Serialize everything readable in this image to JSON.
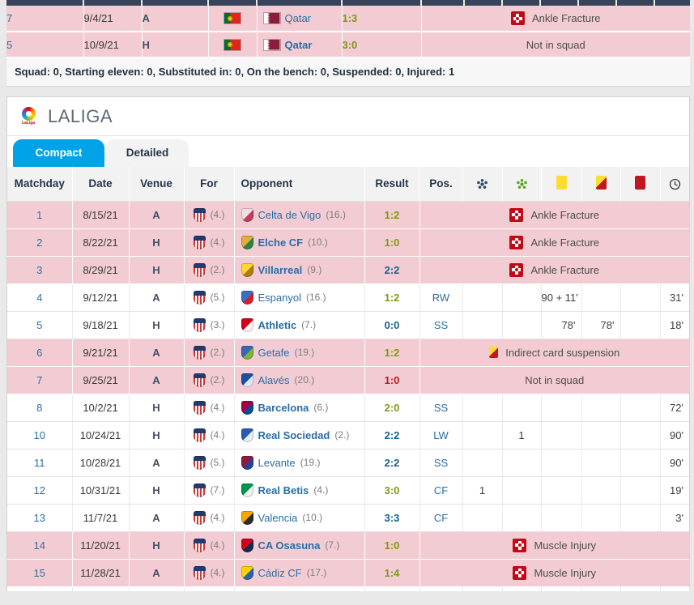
{
  "colors": {
    "accent_tab": "#00a3e8",
    "header_navy": "#36435a",
    "row_pink": "#f3ccd3",
    "link_blue": "#2a6da4",
    "result_win": "#7d9a10",
    "result_draw": "#13618f",
    "result_loss": "#c01722",
    "goals_ball": "#2c4a6b",
    "assists_ball": "#5aa51e",
    "yellow_card": "#fbdc33",
    "red_card": "#c01722",
    "injury_red": "#c00a18"
  },
  "international_table": {
    "rows": [
      {
        "matchday": "7",
        "date": "9/4/21",
        "venue": "A",
        "for_flag": "portugal-flag",
        "opponent": "Qatar",
        "opponent_flag": "qatar-flag",
        "opponent_bold": false,
        "result": "1:3",
        "result_kind": "win",
        "remark": "Ankle Fracture",
        "remark_icon": "injury-cross-icon"
      },
      {
        "matchday": "5",
        "date": "10/9/21",
        "venue": "H",
        "for_flag": "portugal-flag",
        "opponent": "Qatar",
        "opponent_flag": "qatar-flag",
        "opponent_bold": true,
        "result": "3:0",
        "result_kind": "win",
        "remark": "Not in squad",
        "remark_icon": null
      }
    ],
    "summary": "Squad: 0, Starting eleven: 0, Substituted in: 0, On the bench: 0, Suspended: 0, Injured: 1"
  },
  "laliga_section": {
    "title": "LALIGA",
    "logo": "laliga-logo",
    "logo_text": "LaLiga",
    "tabs": [
      {
        "label": "Compact",
        "active": true
      },
      {
        "label": "Detailed",
        "active": false
      }
    ],
    "table": {
      "headers": [
        "Matchday",
        "Date",
        "Venue",
        "For",
        "Opponent",
        "Result",
        "Pos."
      ],
      "icon_headers": [
        "goals-ball-icon",
        "assists-ball-icon",
        "yellow-card-icon",
        "yellow-red-card-icon",
        "red-card-icon",
        "minutes-clock-icon"
      ],
      "for_team": "Atlético Madrid",
      "rows": [
        {
          "matchday": "1",
          "date": "8/15/21",
          "venue": "A",
          "for_rank": "(4.)",
          "opponent": "Celta de Vigo",
          "opponent_rank": "(16.)",
          "opponent_bold": false,
          "badge_colors": [
            "#f2dce6",
            "#c13f5e"
          ],
          "result": "1:2",
          "result_kind": "win",
          "remark": "Ankle Fracture",
          "remark_icon": "injury-cross-icon",
          "pink": true
        },
        {
          "matchday": "2",
          "date": "8/22/21",
          "venue": "H",
          "for_rank": "(4.)",
          "opponent": "Elche CF",
          "opponent_rank": "(10.)",
          "opponent_bold": true,
          "badge_colors": [
            "#dfae3e",
            "#2e8540"
          ],
          "result": "1:0",
          "result_kind": "win",
          "remark": "Ankle Fracture",
          "remark_icon": "injury-cross-icon",
          "pink": true
        },
        {
          "matchday": "3",
          "date": "8/29/21",
          "venue": "H",
          "for_rank": "(2.)",
          "opponent": "Villarreal",
          "opponent_rank": "(9.)",
          "opponent_bold": true,
          "badge_colors": [
            "#ffd633",
            "#a97d12"
          ],
          "result": "2:2",
          "result_kind": "draw",
          "remark": "Ankle Fracture",
          "remark_icon": "injury-cross-icon",
          "pink": true
        },
        {
          "matchday": "4",
          "date": "9/12/21",
          "venue": "A",
          "for_rank": "(5.)",
          "opponent": "Espanyol",
          "opponent_rank": "(16.)",
          "opponent_bold": false,
          "badge_colors": [
            "#3a6fc4",
            "#d42029"
          ],
          "result": "1:2",
          "result_kind": "win",
          "pos": "RW",
          "goals": "",
          "assists": "",
          "yellow": "90 + 11'",
          "yellowred": "",
          "red": "",
          "minutes": "31'",
          "pink": false
        },
        {
          "matchday": "5",
          "date": "9/18/21",
          "venue": "H",
          "for_rank": "(3.)",
          "opponent": "Athletic",
          "opponent_rank": "(7.)",
          "opponent_bold": true,
          "badge_colors": [
            "#d0021b",
            "#f5f5f5"
          ],
          "result": "0:0",
          "result_kind": "draw",
          "pos": "SS",
          "goals": "",
          "assists": "",
          "yellow": "78'",
          "yellowred": "78'",
          "red": "",
          "minutes": "18'",
          "pink": false
        },
        {
          "matchday": "6",
          "date": "9/21/21",
          "venue": "A",
          "for_rank": "(2.)",
          "opponent": "Getafe",
          "opponent_rank": "(19.)",
          "opponent_bold": false,
          "badge_colors": [
            "#3a67b1",
            "#7fb23d"
          ],
          "result": "1:2",
          "result_kind": "win",
          "remark": "Indirect card suspension",
          "remark_icon": "yellow-red-card-icon",
          "pink": true
        },
        {
          "matchday": "7",
          "date": "9/25/21",
          "venue": "A",
          "for_rank": "(2.)",
          "opponent": "Alavés",
          "opponent_rank": "(20.)",
          "opponent_bold": false,
          "badge_colors": [
            "#1b4fa0",
            "#dfe9f5"
          ],
          "result": "1:0",
          "result_kind": "loss",
          "remark": "Not in squad",
          "remark_icon": null,
          "pink": true
        },
        {
          "matchday": "8",
          "date": "10/2/21",
          "venue": "H",
          "for_rank": "(4.)",
          "opponent": "Barcelona",
          "opponent_rank": "(6.)",
          "opponent_bold": true,
          "badge_colors": [
            "#a50044",
            "#004d98"
          ],
          "result": "2:0",
          "result_kind": "win",
          "pos": "SS",
          "goals": "",
          "assists": "",
          "yellow": "",
          "yellowred": "",
          "red": "",
          "minutes": "72'",
          "pink": false
        },
        {
          "matchday": "10",
          "date": "10/24/21",
          "venue": "H",
          "for_rank": "(4.)",
          "opponent": "Real Sociedad",
          "opponent_rank": "(2.)",
          "opponent_bold": true,
          "badge_colors": [
            "#2a5cad",
            "#e8eef7"
          ],
          "result": "2:2",
          "result_kind": "draw",
          "pos": "LW",
          "goals": "",
          "assists": "1",
          "yellow": "",
          "yellowred": "",
          "red": "",
          "minutes": "90'",
          "pink": false
        },
        {
          "matchday": "11",
          "date": "10/28/21",
          "venue": "A",
          "for_rank": "(5.)",
          "opponent": "Levante",
          "opponent_rank": "(19.)",
          "opponent_bold": false,
          "badge_colors": [
            "#8c1b3f",
            "#24439a"
          ],
          "result": "2:2",
          "result_kind": "draw",
          "pos": "SS",
          "goals": "",
          "assists": "",
          "yellow": "",
          "yellowred": "",
          "red": "",
          "minutes": "90'",
          "pink": false
        },
        {
          "matchday": "12",
          "date": "10/31/21",
          "venue": "H",
          "for_rank": "(7.)",
          "opponent": "Real Betis",
          "opponent_rank": "(4.)",
          "opponent_bold": true,
          "badge_colors": [
            "#00954c",
            "#f0f4ef"
          ],
          "result": "3:0",
          "result_kind": "win",
          "pos": "CF",
          "goals": "1",
          "assists": "",
          "yellow": "",
          "yellowred": "",
          "red": "",
          "minutes": "19'",
          "pink": false
        },
        {
          "matchday": "13",
          "date": "11/7/21",
          "venue": "A",
          "for_rank": "(4.)",
          "opponent": "Valencia",
          "opponent_rank": "(10.)",
          "opponent_bold": false,
          "badge_colors": [
            "#f7a800",
            "#2b2b2b"
          ],
          "result": "3:3",
          "result_kind": "draw",
          "pos": "CF",
          "goals": "",
          "assists": "",
          "yellow": "",
          "yellowred": "",
          "red": "",
          "minutes": "3'",
          "pink": false
        },
        {
          "matchday": "14",
          "date": "11/20/21",
          "venue": "H",
          "for_rank": "(4.)",
          "opponent": "CA Osasuna",
          "opponent_rank": "(7.)",
          "opponent_bold": true,
          "badge_colors": [
            "#d0021b",
            "#122b52"
          ],
          "result": "1:0",
          "result_kind": "win",
          "remark": "Muscle Injury",
          "remark_icon": "injury-cross-icon",
          "pink": true
        },
        {
          "matchday": "15",
          "date": "11/28/21",
          "venue": "A",
          "for_rank": "(4.)",
          "opponent": "Cádiz CF",
          "opponent_rank": "(17.)",
          "opponent_bold": false,
          "badge_colors": [
            "#ffd200",
            "#2a63ae"
          ],
          "result": "1:4",
          "result_kind": "win",
          "remark": "Muscle Injury",
          "remark_icon": "injury-cross-icon",
          "pink": true
        }
      ]
    }
  }
}
